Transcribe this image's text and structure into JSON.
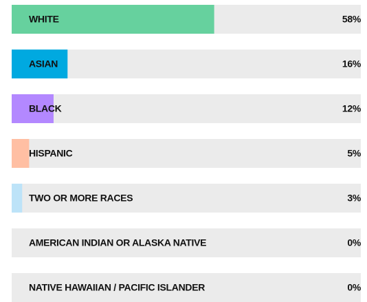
{
  "chart_data": {
    "type": "bar",
    "orientation": "horizontal",
    "categories": [
      "WHITE",
      "ASIAN",
      "BLACK",
      "HISPANIC",
      "TWO OR MORE RACES",
      "AMERICAN INDIAN OR ALASKA NATIVE",
      "NATIVE HAWAIIAN / PACIFIC ISLANDER"
    ],
    "values": [
      58,
      16,
      12,
      5,
      3,
      0,
      0
    ],
    "value_labels": [
      "58%",
      "16%",
      "12%",
      "5%",
      "3%",
      "0%",
      "0%"
    ],
    "colors": [
      "#66d19e",
      "#00a9e0",
      "#b388ff",
      "#ffbfa3",
      "#bde3f8",
      "#bde3f8",
      "#bde3f8"
    ],
    "track_color": "#ebebeb",
    "xlim": [
      0,
      100
    ]
  }
}
